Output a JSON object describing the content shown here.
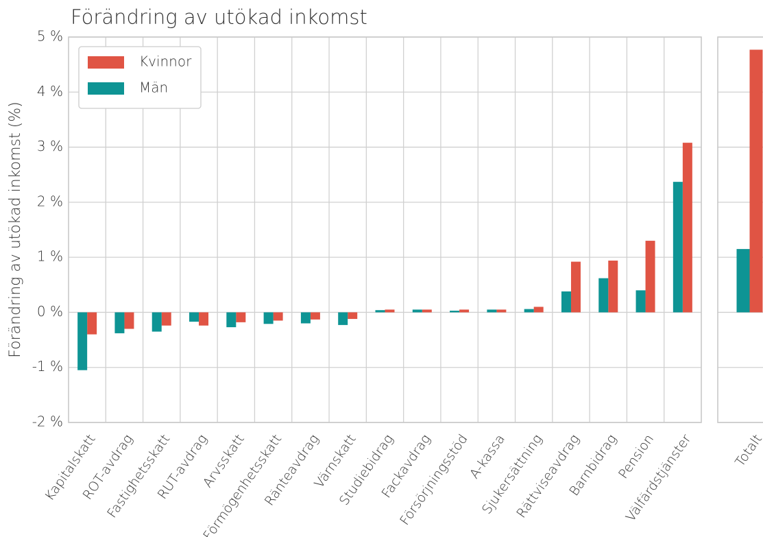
{
  "chart_data": [
    {
      "type": "bar",
      "title": "Förändring av utökad inkomst",
      "y_label": "Förändring av utökad inkomst (%)",
      "categories": [
        "Kapitalskatt",
        "ROT-avdrag",
        "Fastighetsskatt",
        "RUT-avdrag",
        "Arvsskatt",
        "Förmögenhetsskatt",
        "Ränteavdrag",
        "Värnskatt",
        "Studiebidrag",
        "Fackavdrag",
        "Försörjningsstöd",
        "A-kassa",
        "Sjukersättning",
        "Rättviseavdrag",
        "Barnbidrag",
        "Pension",
        "Välfärdstjänster"
      ],
      "series": [
        {
          "name": "Kvinnor",
          "color": "#e05444",
          "values": [
            -0.4,
            -0.3,
            -0.24,
            -0.24,
            -0.18,
            -0.15,
            -0.13,
            -0.12,
            0.05,
            0.05,
            0.05,
            0.05,
            0.1,
            0.92,
            0.94,
            1.3,
            3.08
          ]
        },
        {
          "name": "Män",
          "color": "#0e9494",
          "values": [
            -1.05,
            -0.38,
            -0.35,
            -0.17,
            -0.27,
            -0.21,
            -0.2,
            -0.23,
            0.04,
            0.05,
            0.03,
            0.05,
            0.06,
            0.38,
            0.62,
            0.4,
            2.37
          ]
        }
      ],
      "ylim": [
        -2,
        5
      ],
      "yticks": [
        {
          "value": -2,
          "label": "-2 %"
        },
        {
          "value": -1,
          "label": "-1 %"
        },
        {
          "value": 0,
          "label": "0 %"
        },
        {
          "value": 1,
          "label": "1 %"
        },
        {
          "value": 2,
          "label": "2 %"
        },
        {
          "value": 3,
          "label": "3 %"
        },
        {
          "value": 4,
          "label": "4 %"
        },
        {
          "value": 5,
          "label": "5 %"
        }
      ],
      "grid": true,
      "legend": "upper left"
    },
    {
      "type": "bar",
      "categories": [
        "Totalt"
      ],
      "series": [
        {
          "color": "#e05444",
          "values": [
            4.77
          ]
        },
        {
          "color": "#0e9494",
          "values": [
            1.15
          ]
        }
      ],
      "ylim": [
        -2,
        5
      ],
      "yticks": [
        -2,
        -1,
        0,
        1,
        2,
        3,
        4,
        5
      ],
      "grid": true
    }
  ]
}
